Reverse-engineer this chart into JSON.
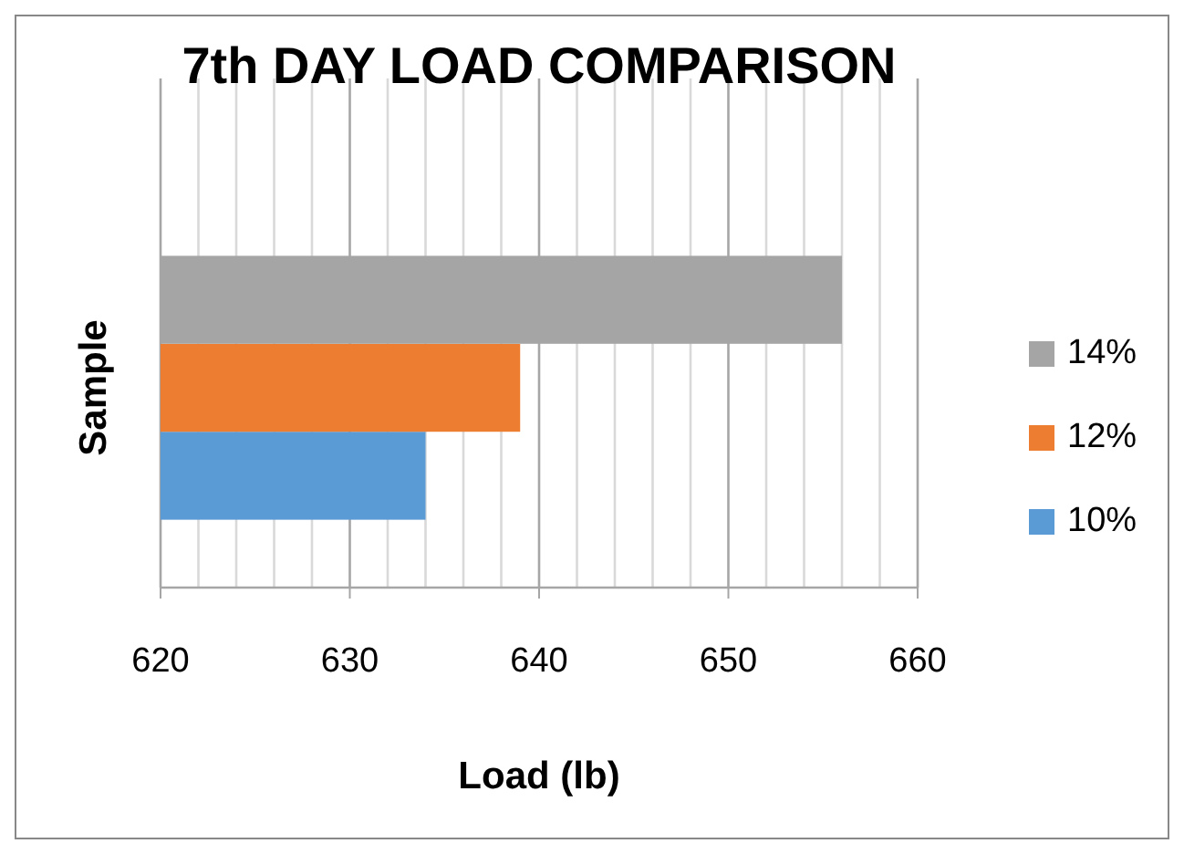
{
  "chart_data": {
    "type": "bar",
    "orientation": "horizontal",
    "title": "7th DAY LOAD COMPARISON",
    "xlabel": "Load (lb)",
    "ylabel": "Sample",
    "categories": [
      null
    ],
    "series": [
      {
        "name": "10%",
        "color": "#5b9bd5",
        "values": [
          634
        ]
      },
      {
        "name": "12%",
        "color": "#ed7d31",
        "values": [
          639
        ]
      },
      {
        "name": "14%",
        "color": "#a5a5a5",
        "values": [
          656
        ]
      }
    ],
    "xlim": [
      620,
      660
    ],
    "xticks": [
      620,
      {
        "value": 622,
        "label": null
      },
      {
        "value": 624,
        "label": null
      },
      {
        "value": 626,
        "label": null
      },
      {
        "value": 628,
        "label": null
      },
      630,
      {
        "value": 632,
        "label": null
      },
      {
        "value": 634,
        "label": null
      },
      {
        "value": 636,
        "label": null
      },
      {
        "value": 638,
        "label": null
      },
      640,
      {
        "value": 642,
        "label": null
      },
      {
        "value": 644,
        "label": null
      },
      {
        "value": 646,
        "label": null
      },
      {
        "value": 648,
        "label": null
      },
      650,
      {
        "value": 652,
        "label": null
      },
      {
        "value": 654,
        "label": null
      },
      {
        "value": 656,
        "label": null
      },
      {
        "value": 658,
        "label": null
      },
      660
    ],
    "grid": "x",
    "legend": "right"
  }
}
